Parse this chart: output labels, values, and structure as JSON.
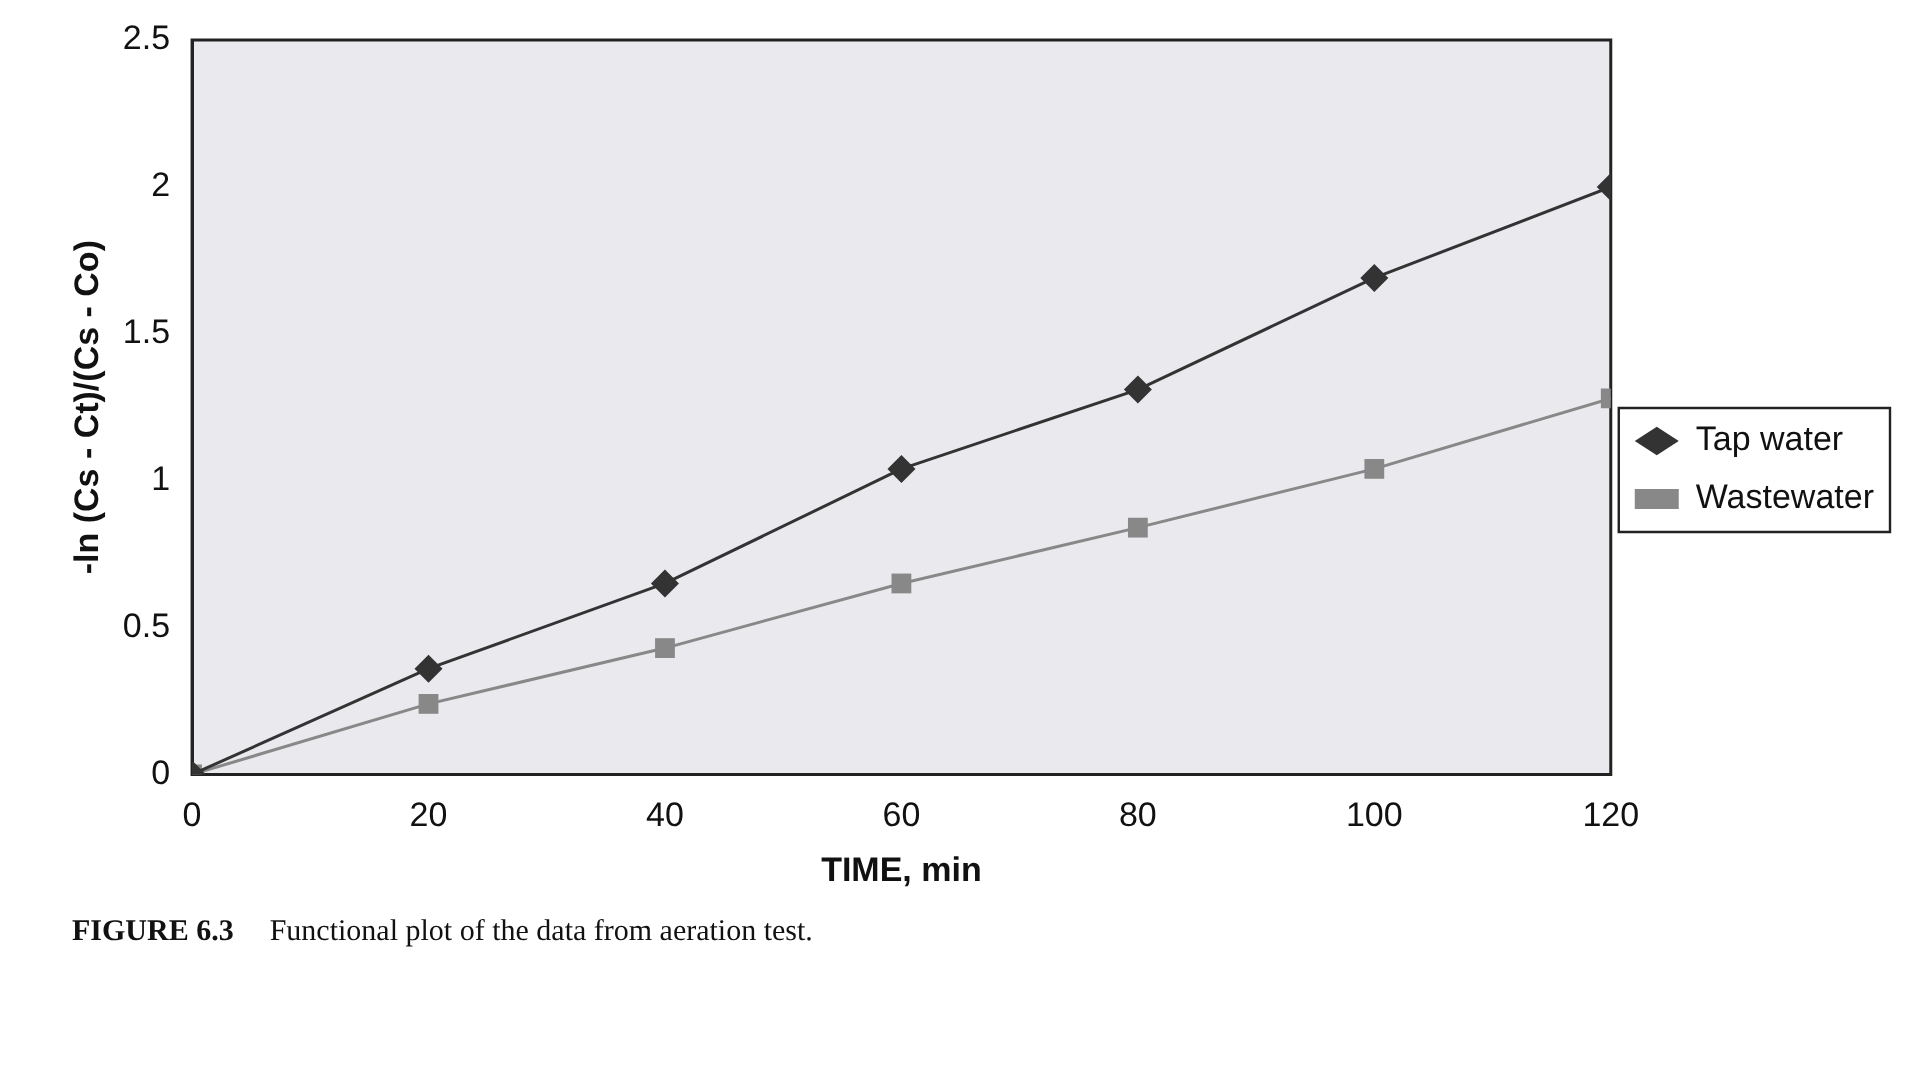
{
  "chart_data": {
    "type": "line",
    "xlabel": "TIME, min",
    "ylabel": "-ln (Cs - Ct)/(Cs - Co)",
    "x": [
      0,
      20,
      40,
      60,
      80,
      100,
      120
    ],
    "series": [
      {
        "name": "Tap water",
        "color": "#333333",
        "marker": "diamond",
        "values": [
          0,
          0.36,
          0.65,
          1.04,
          1.31,
          1.69,
          2.0
        ]
      },
      {
        "name": "Wastewater",
        "color": "#888888",
        "marker": "square",
        "values": [
          0,
          0.24,
          0.43,
          0.65,
          0.84,
          1.04,
          1.28
        ]
      }
    ],
    "xlim": [
      0,
      120
    ],
    "xticks": [
      0,
      20,
      40,
      60,
      80,
      100,
      120
    ],
    "ylim": [
      0,
      2.5
    ],
    "yticks": [
      0,
      0.5,
      1,
      1.5,
      2,
      2.5
    ],
    "grid": false,
    "legend": "right",
    "annotations": [
      "FIGURE 6.3",
      "Functional plot of the data from aeration test."
    ]
  }
}
